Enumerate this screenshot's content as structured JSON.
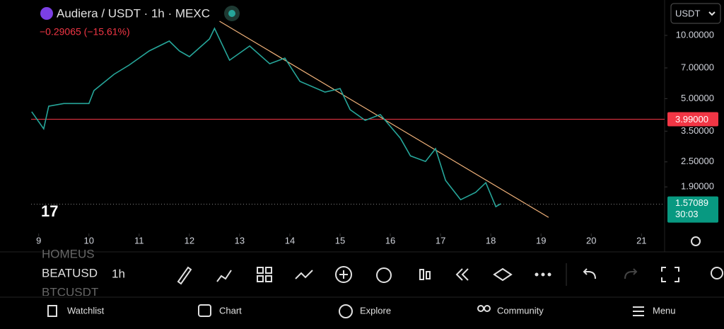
{
  "header": {
    "symbol": "Audiera / USDT · 1h · MEXC",
    "change": "−0.29065 (−15.61%)",
    "currency": "USDT"
  },
  "chart_data": {
    "type": "line",
    "log_scale": true,
    "grid": false,
    "color": "#26a69a",
    "x": [
      8.86,
      9.1,
      9.2,
      9.5,
      10.0,
      10.1,
      10.5,
      10.8,
      11.2,
      11.6,
      11.8,
      12.0,
      12.4,
      12.5,
      12.8,
      13.2,
      13.6,
      13.9,
      14.2,
      14.7,
      15.0,
      15.2,
      15.5,
      15.8,
      16.2,
      16.4,
      16.7,
      16.9,
      17.1,
      17.4,
      17.7,
      17.9,
      18.1,
      18.2
    ],
    "values": [
      4.33,
      3.59,
      4.6,
      4.74,
      4.74,
      5.46,
      6.53,
      7.22,
      8.43,
      9.4,
      8.43,
      7.92,
      9.62,
      10.8,
      7.62,
      8.9,
      7.33,
      7.8,
      6.04,
      5.37,
      5.58,
      4.43,
      3.94,
      4.2,
      3.24,
      2.67,
      2.51,
      2.89,
      2.04,
      1.65,
      1.79,
      1.99,
      1.53,
      1.58
    ],
    "xlim": [
      8.23,
      21.46
    ],
    "ylim": [
      1.14,
      14.74
    ],
    "xticks": [
      9,
      10,
      11,
      12,
      13,
      14,
      15,
      16,
      17,
      18,
      19,
      20,
      21
    ],
    "yticks": [
      {
        "value": 10,
        "label": "10.00000"
      },
      {
        "value": 7,
        "label": "7.00000"
      },
      {
        "value": 5,
        "label": "5.00000"
      },
      {
        "value": 3.5,
        "label": "3.50000"
      },
      {
        "value": 2.5,
        "label": "2.50000"
      },
      {
        "value": 1.9,
        "label": "1.90000"
      }
    ],
    "price_line": {
      "value": 3.99,
      "label": "3.99000",
      "color": "#f23645"
    },
    "last_price": {
      "value": 1.57089,
      "label": "1.57089",
      "countdown": "30:03",
      "color": "#089981"
    },
    "trend_line": {
      "x": [
        12.6,
        19.15
      ],
      "values": [
        11.68,
        1.36
      ],
      "color": "#f0b27a"
    }
  },
  "toolbar": {
    "symbols": [
      "HOMEUS",
      "BEATUSD",
      "BTCUSDT"
    ],
    "interval": "1h"
  },
  "nav": [
    "Watchlist",
    "Chart",
    "Explore",
    "Community",
    "Menu"
  ]
}
